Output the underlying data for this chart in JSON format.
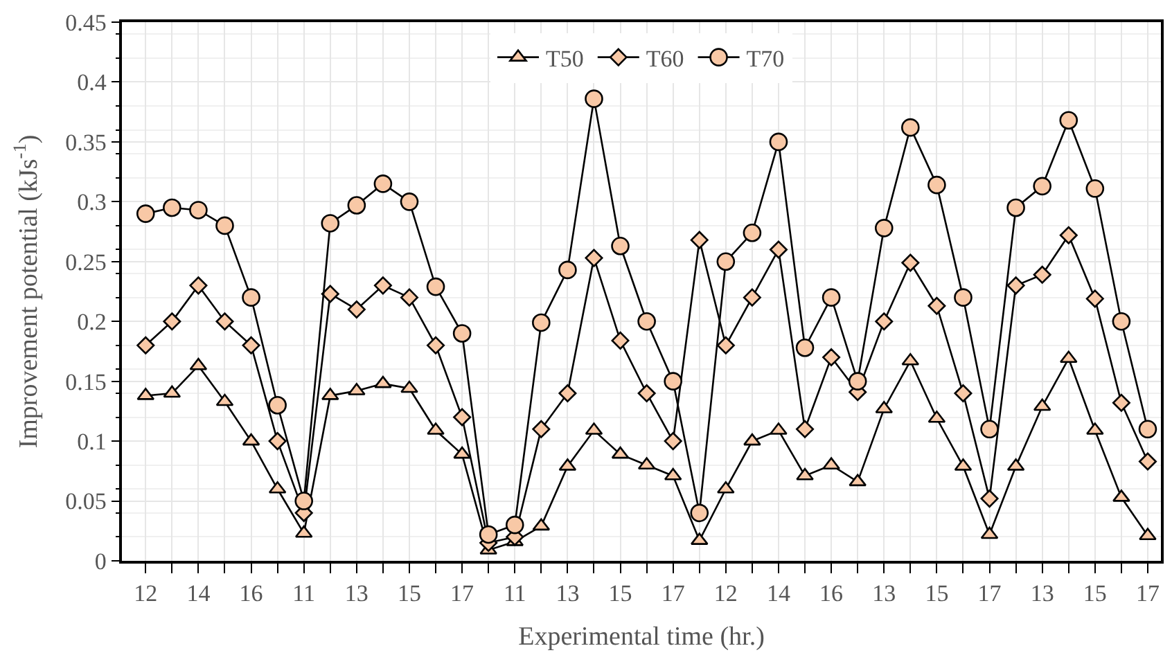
{
  "chart_data": {
    "type": "line",
    "xlabel": "Experimental time (hr.)",
    "ylabel": "Improvement potential (kJs$^{-1}$)",
    "categories": [
      "12",
      null,
      "14",
      null,
      "16",
      null,
      "11",
      null,
      "13",
      null,
      "15",
      null,
      "17",
      null,
      "11",
      null,
      "13",
      null,
      "15",
      null,
      "17",
      null,
      "12",
      null,
      "14",
      null,
      "16",
      null,
      "13",
      null,
      "15",
      null,
      "17",
      null,
      "13",
      null,
      "15",
      null,
      "17"
    ],
    "series": [
      {
        "name": "T50",
        "color": "#f8c8a6",
        "marker": "triangle",
        "values": [
          0.138,
          0.14,
          0.163,
          0.133,
          0.1,
          0.06,
          0.023,
          0.138,
          0.142,
          0.148,
          0.144,
          0.109,
          0.089,
          0.009,
          0.016,
          0.029,
          0.079,
          0.109,
          0.089,
          0.08,
          0.071,
          0.017,
          0.06,
          0.1,
          0.109,
          0.071,
          0.08,
          0.066,
          0.127,
          0.167,
          0.119,
          0.079,
          0.022,
          0.079,
          0.129,
          0.169,
          0.109,
          0.053,
          0.021
        ]
      },
      {
        "name": "T60",
        "color": "#f8c8a6",
        "marker": "diamond",
        "values": [
          0.18,
          0.2,
          0.23,
          0.2,
          0.18,
          0.1,
          0.04,
          0.223,
          0.21,
          0.23,
          0.22,
          0.18,
          0.12,
          0.015,
          0.02,
          0.11,
          0.14,
          0.253,
          0.184,
          0.14,
          0.1,
          0.268,
          0.18,
          0.22,
          0.26,
          0.11,
          0.17,
          0.141,
          0.2,
          0.249,
          0.213,
          0.14,
          0.052,
          0.23,
          0.239,
          0.272,
          0.219,
          0.132,
          0.083
        ]
      },
      {
        "name": "T70",
        "color": "#f8c8a6",
        "marker": "circle",
        "values": [
          0.29,
          0.295,
          0.293,
          0.28,
          0.22,
          0.13,
          0.05,
          0.282,
          0.297,
          0.315,
          0.3,
          0.229,
          0.19,
          0.022,
          0.03,
          0.199,
          0.243,
          0.386,
          0.263,
          0.2,
          0.15,
          0.04,
          0.25,
          0.274,
          0.35,
          0.178,
          0.22,
          0.15,
          0.278,
          0.362,
          0.314,
          0.22,
          0.11,
          0.295,
          0.313,
          0.368,
          0.311,
          0.2,
          0.11
        ]
      }
    ],
    "ylim": [
      0,
      0.45
    ],
    "yticks": [
      0,
      0.05,
      0.1,
      0.15,
      0.2,
      0.25,
      0.3,
      0.35,
      0.4,
      0.45
    ],
    "grid": true,
    "legend": "top",
    "line_style": "solid"
  }
}
